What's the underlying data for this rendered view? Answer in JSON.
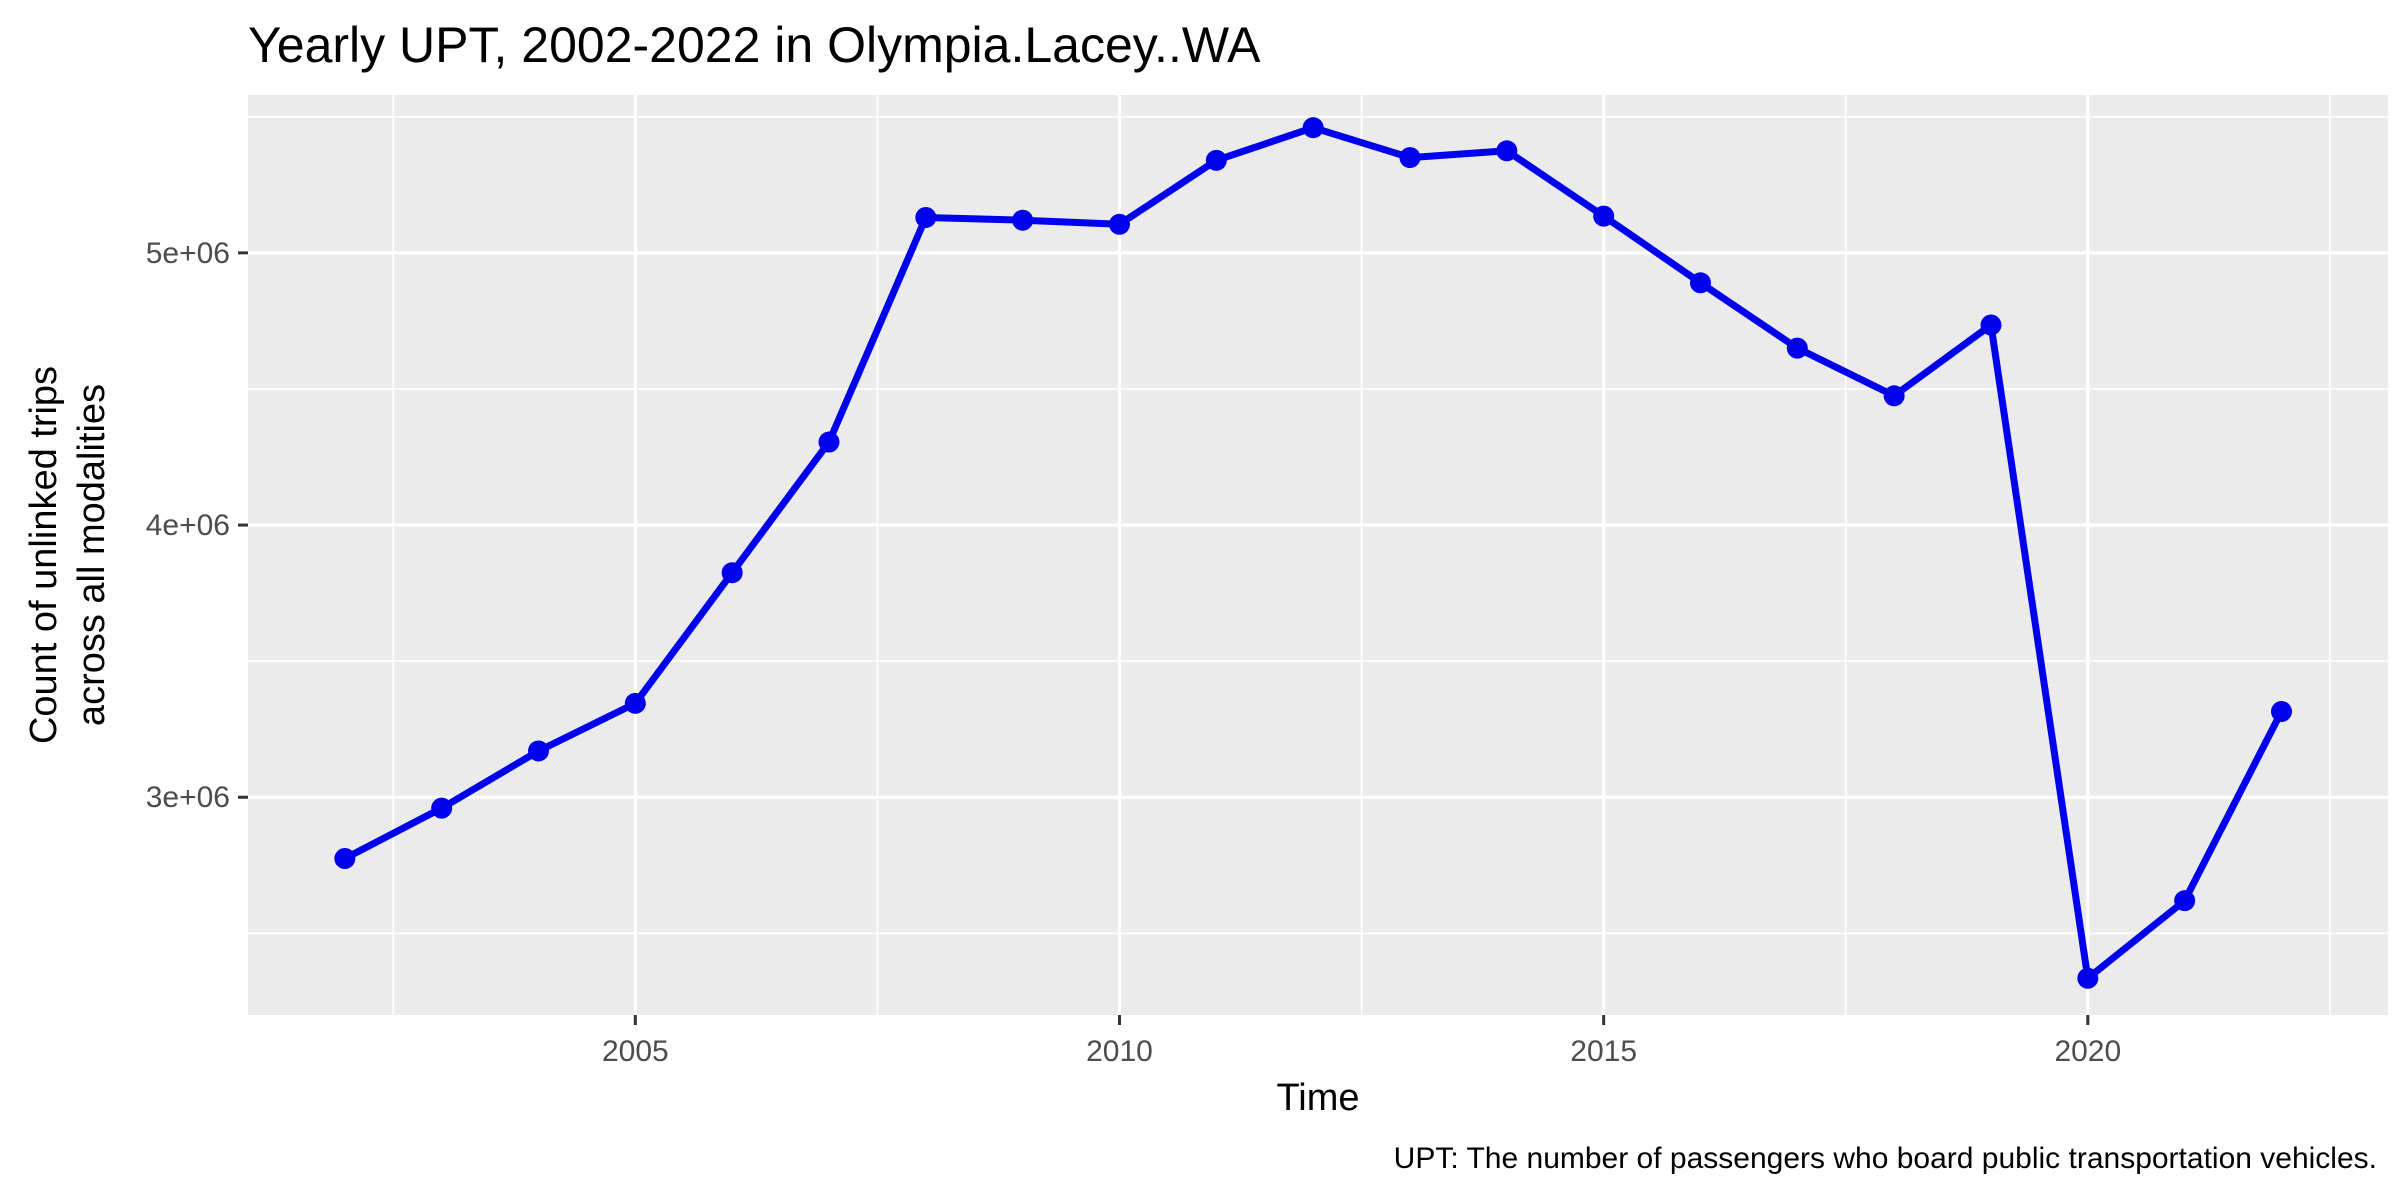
{
  "chart_data": {
    "type": "line",
    "title": "Yearly UPT, 2002-2022 in Olympia.Lacey..WA",
    "xlabel": "Time",
    "ylabel_lines": [
      "Count of unlinked trips",
      "across all modalities"
    ],
    "caption": "UPT: The number of passengers who board public transportation vehicles.",
    "xlim": [
      2001,
      2023.1
    ],
    "ylim": [
      2200000,
      5580000
    ],
    "x_ticks": [
      2005,
      2010,
      2015,
      2020
    ],
    "x_tick_labels": [
      "2005",
      "2010",
      "2015",
      "2020"
    ],
    "y_ticks": [
      3000000,
      4000000,
      5000000
    ],
    "y_tick_labels": [
      "3e+06",
      "4e+06",
      "5e+06"
    ],
    "grid": true,
    "legend": "none",
    "series": [
      {
        "color": "#0000ee",
        "x": [
          2002,
          2003,
          2004,
          2005,
          2006,
          2007,
          2008,
          2009,
          2010,
          2011,
          2012,
          2013,
          2014,
          2015,
          2016,
          2017,
          2018,
          2019,
          2020,
          2021,
          2022
        ],
        "y": [
          2775000,
          2960000,
          3170000,
          3345000,
          3825000,
          4305000,
          5130000,
          5120000,
          5105000,
          5340000,
          5460000,
          5350000,
          5375000,
          5135000,
          4890000,
          4650000,
          4475000,
          4735000,
          2335000,
          2620000,
          3315000
        ]
      }
    ]
  }
}
